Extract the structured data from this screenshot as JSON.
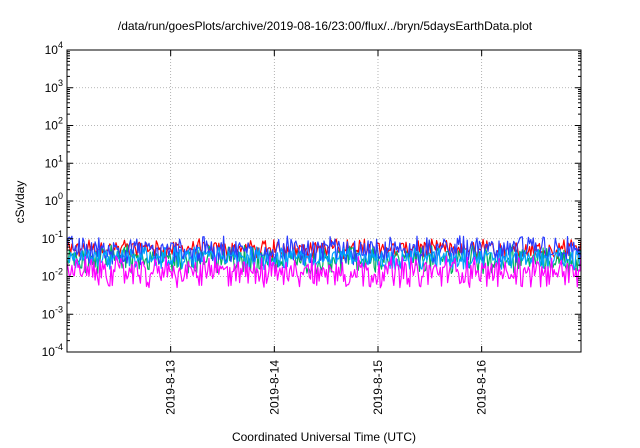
{
  "chart_data": {
    "type": "line",
    "title": "/data/run/goesPlots/archive/2019-08-16/23:00/flux/../bryn/5daysEarthData.plot",
    "xlabel": "Coordinated Universal Time (UTC)",
    "ylabel": "cSv/day",
    "yscale": "log",
    "ylim_exponents": [
      -4,
      4
    ],
    "y_tick_labels": [
      {
        "exp": -4,
        "base": "10",
        "sup": "-4"
      },
      {
        "exp": -3,
        "base": "10",
        "sup": "-3"
      },
      {
        "exp": -2,
        "base": "10",
        "sup": "-2"
      },
      {
        "exp": -1,
        "base": "10",
        "sup": "-1"
      },
      {
        "exp": 0,
        "base": "10",
        "sup": "0"
      },
      {
        "exp": 1,
        "base": "10",
        "sup": "1"
      },
      {
        "exp": 2,
        "base": "10",
        "sup": "2"
      },
      {
        "exp": 3,
        "base": "10",
        "sup": "3"
      },
      {
        "exp": 4,
        "base": "10",
        "sup": "4"
      }
    ],
    "xlim": [
      "2019-08-12T00:00",
      "2019-08-16T23:00"
    ],
    "x_ticks": [
      {
        "date": "2019-08-13T00:00",
        "label": "2019-8-13"
      },
      {
        "date": "2019-08-14T00:00",
        "label": "2019-8-14"
      },
      {
        "date": "2019-08-15T00:00",
        "label": "2019-8-15"
      },
      {
        "date": "2019-08-16T00:00",
        "label": "2019-8-16"
      }
    ],
    "grid": true,
    "grid_style": "dotted",
    "series": [
      {
        "color": "#ff0000",
        "approx_range": [
          0.03,
          0.1
        ]
      },
      {
        "color": "#00b060",
        "approx_range": [
          0.012,
          0.07
        ]
      },
      {
        "color": "#2a3cff",
        "approx_range": [
          0.02,
          0.12
        ]
      },
      {
        "color": "#00a0ff",
        "approx_range": [
          0.015,
          0.06
        ]
      },
      {
        "color": "#ff00ff",
        "approx_range": [
          0.005,
          0.035
        ]
      }
    ]
  }
}
